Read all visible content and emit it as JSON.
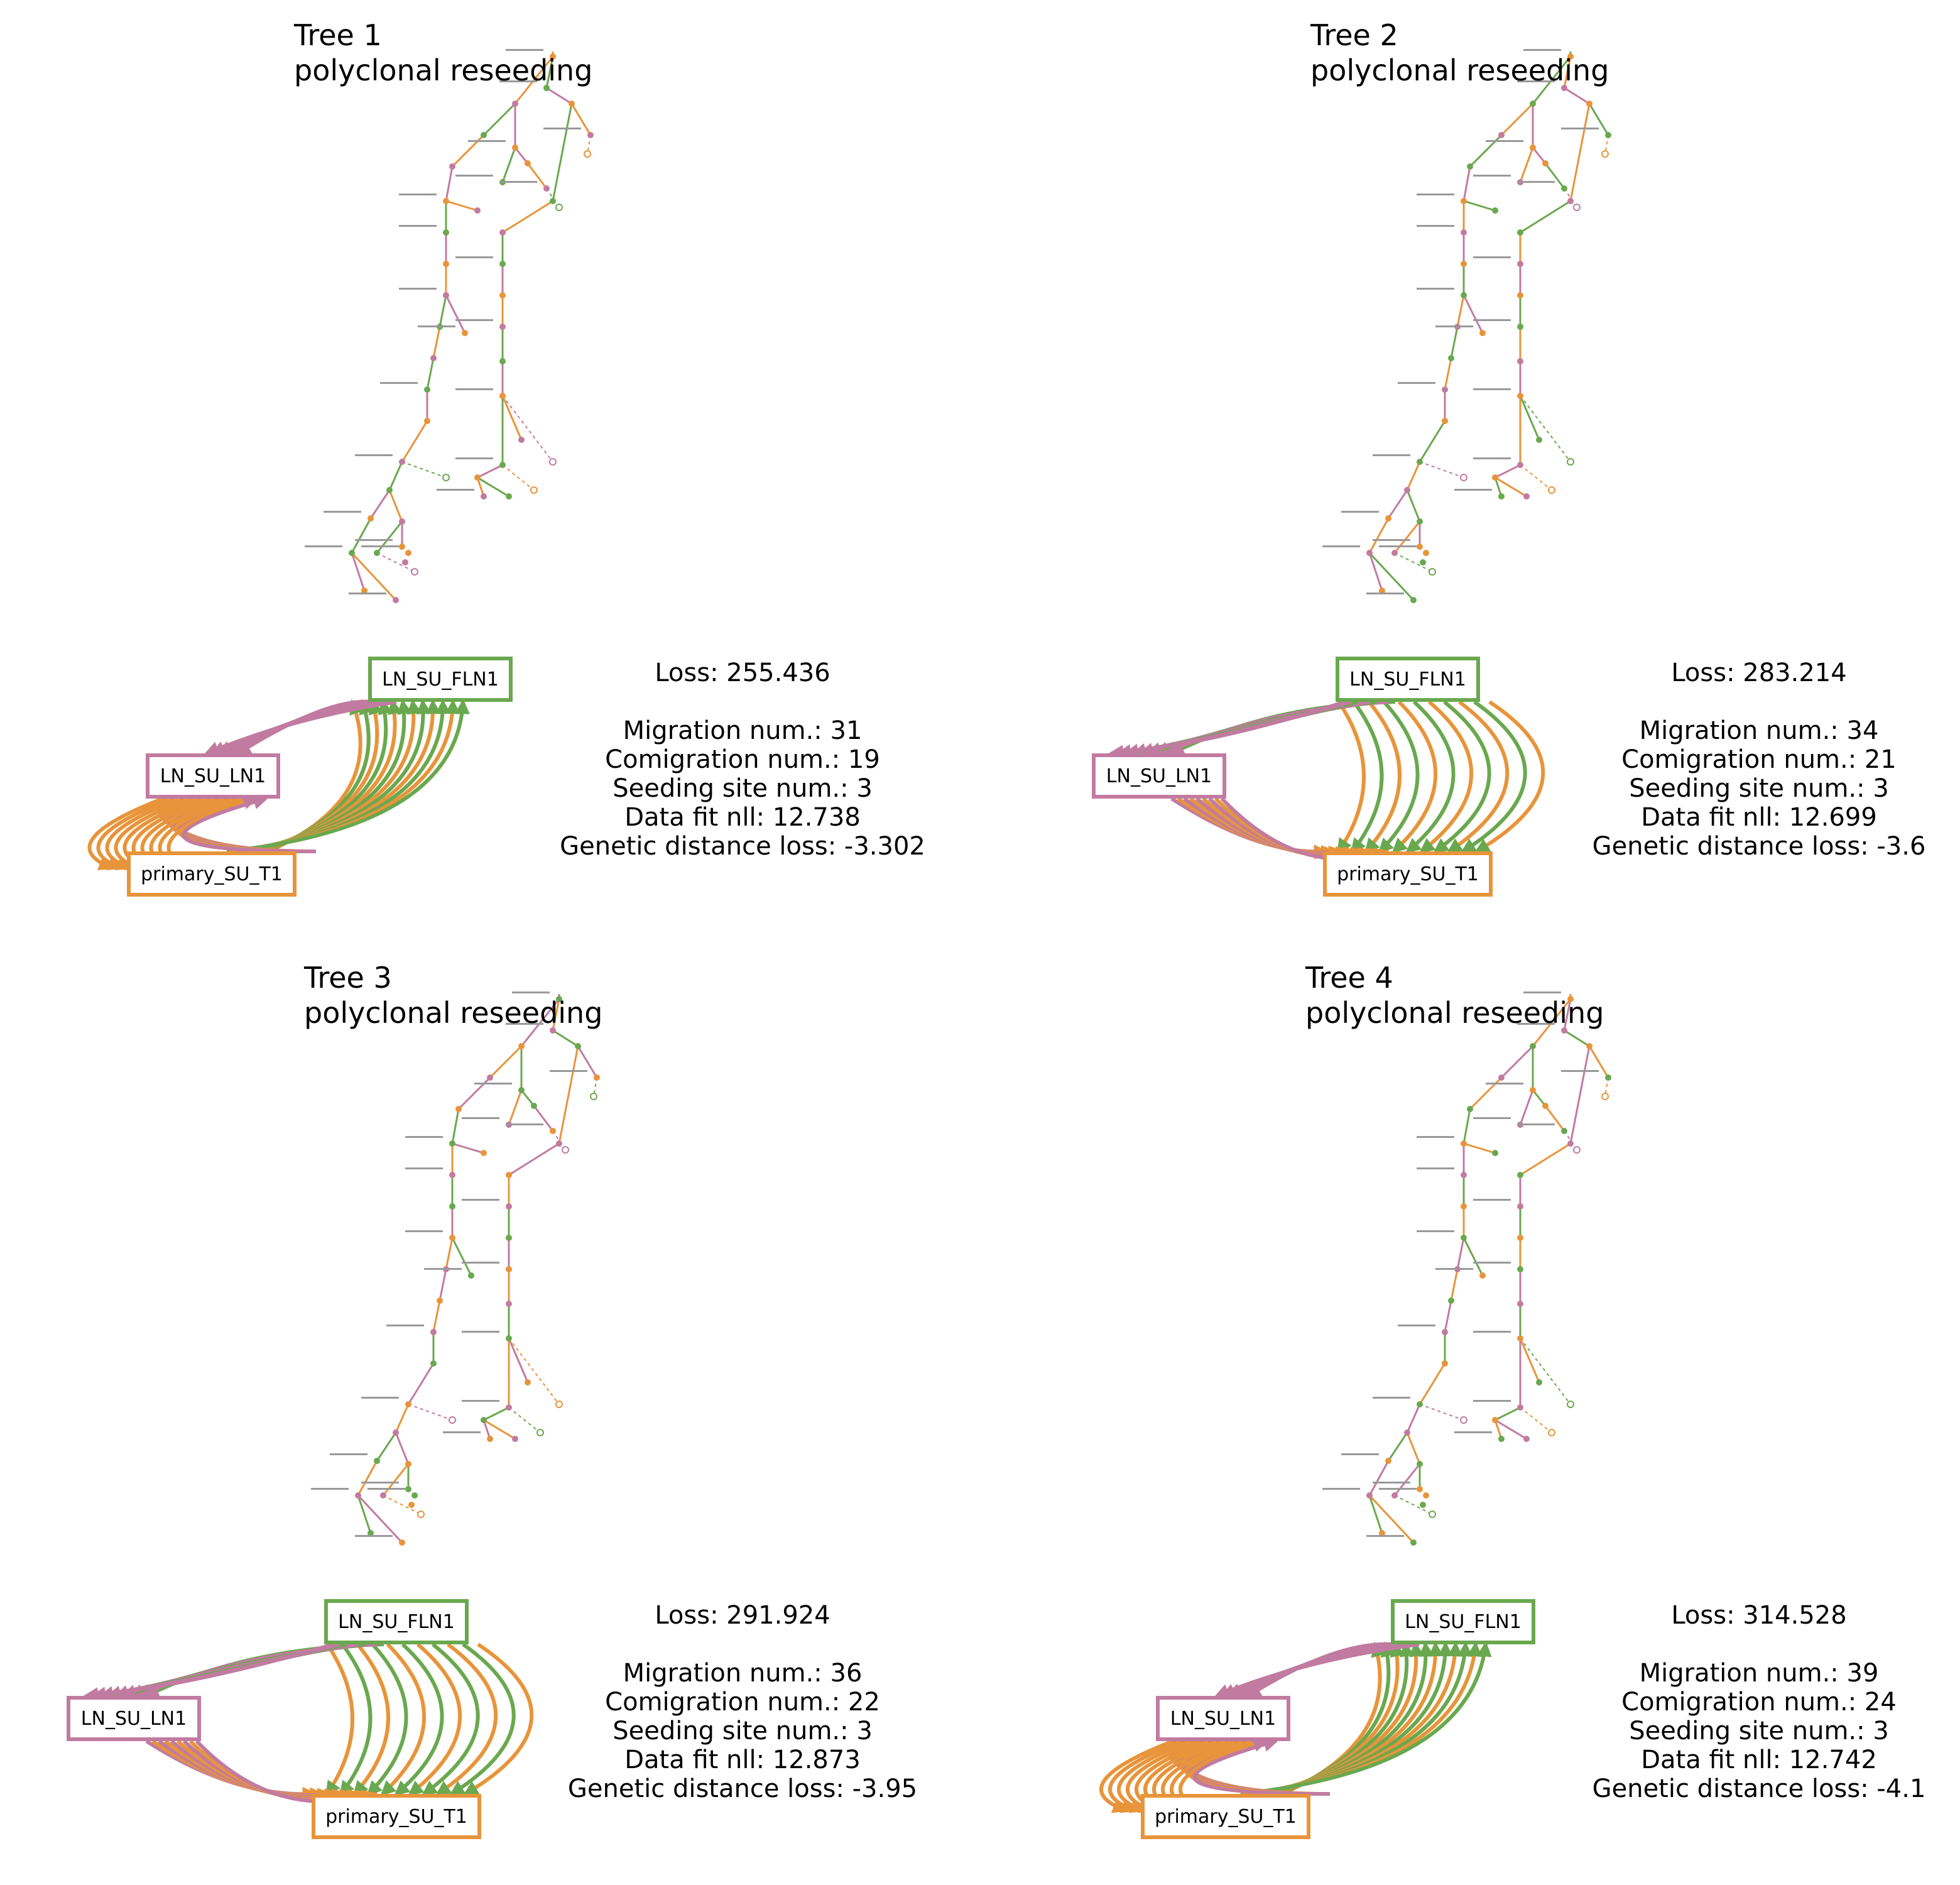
{
  "colors": {
    "primary": "#e8943a",
    "fln": "#6aa84f",
    "ln": "#c27ba0"
  },
  "panels": [
    {
      "id": "tree-1",
      "title": "Tree 1",
      "subtitle": "polyclonal reseeding",
      "loss": "Loss: 255.436",
      "migration": "Migration num.: 31",
      "comigration": "Comigration num.: 19",
      "seeding": "Seeding site num.: 3",
      "fit": "Data fit nll: 12.738",
      "genetic": "Genetic distance loss: -3.302",
      "nodes": {
        "fln": "LN_SU_FLN1",
        "ln": "LN_SU_LN1",
        "primary": "primary_SU_T1"
      }
    },
    {
      "id": "tree-2",
      "title": "Tree 2",
      "subtitle": "polyclonal reseeding",
      "loss": "Loss: 283.214",
      "migration": "Migration num.: 34",
      "comigration": "Comigration num.: 21",
      "seeding": "Seeding site num.: 3",
      "fit": "Data fit nll: 12.699",
      "genetic": "Genetic distance loss: -3.6",
      "nodes": {
        "fln": "LN_SU_FLN1",
        "ln": "LN_SU_LN1",
        "primary": "primary_SU_T1"
      }
    },
    {
      "id": "tree-3",
      "title": "Tree 3",
      "subtitle": "polyclonal reseeding",
      "loss": "Loss: 291.924",
      "migration": "Migration num.: 36",
      "comigration": "Comigration num.: 22",
      "seeding": "Seeding site num.: 3",
      "fit": "Data fit nll: 12.873",
      "genetic": "Genetic distance loss: -3.95",
      "nodes": {
        "fln": "LN_SU_FLN1",
        "ln": "LN_SU_LN1",
        "primary": "primary_SU_T1"
      }
    },
    {
      "id": "tree-4",
      "title": "Tree 4",
      "subtitle": "polyclonal reseeding",
      "loss": "Loss: 314.528",
      "migration": "Migration num.: 39",
      "comigration": "Comigration num.: 24",
      "seeding": "Seeding site num.: 3",
      "fit": "Data fit nll: 12.742",
      "genetic": "Genetic distance loss: -4.1",
      "nodes": {
        "fln": "LN_SU_FLN1",
        "ln": "LN_SU_LN1",
        "primary": "primary_SU_T1"
      }
    }
  ]
}
